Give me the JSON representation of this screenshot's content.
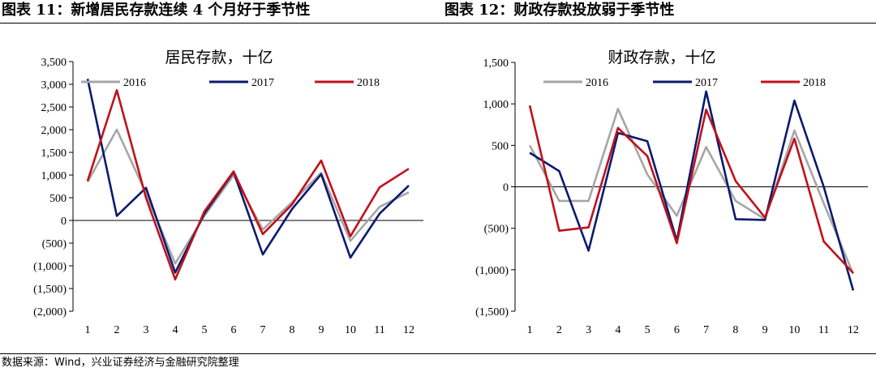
{
  "header": {
    "left_title": "图表 11：新增居民存款连续 4 个月好于季节性",
    "right_title": "图表 12：财政存款投放弱于季节性"
  },
  "source": "数据来源：Wind，兴业证券经济与金融研究院整理",
  "colors": {
    "2016": "#a6a6a6",
    "2017": "#0b1a6e",
    "2018": "#c0111b"
  },
  "chart_data": [
    {
      "type": "line",
      "title": "居民存款，十亿",
      "xlabel": "",
      "ylabel": "",
      "categories": [
        "1",
        "2",
        "3",
        "4",
        "5",
        "6",
        "7",
        "8",
        "9",
        "10",
        "11",
        "12"
      ],
      "ylim": [
        -2000,
        3500
      ],
      "yticks": [
        3500,
        3000,
        2500,
        2000,
        1500,
        1000,
        500,
        0,
        -500,
        -1000,
        -1500,
        -2000
      ],
      "ytick_labels": [
        "3,500",
        "3,000",
        "2,500",
        "2,000",
        "1,500",
        "1,000",
        "500",
        "0",
        "(500)",
        "(1,000)",
        "(1,500)",
        "(2,000)"
      ],
      "legend_position": "top",
      "series": [
        {
          "name": "2016",
          "values": [
            850,
            2000,
            600,
            -950,
            100,
            1000,
            -200,
            400,
            1050,
            -450,
            300,
            620
          ]
        },
        {
          "name": "2017",
          "values": [
            3120,
            100,
            720,
            -1150,
            150,
            1070,
            -750,
            250,
            1020,
            -820,
            150,
            770
          ]
        },
        {
          "name": "2018",
          "values": [
            870,
            2870,
            500,
            -1300,
            200,
            1080,
            -300,
            350,
            1320,
            -350,
            730,
            1140
          ]
        }
      ]
    },
    {
      "type": "line",
      "title": "财政存款，十亿",
      "xlabel": "",
      "ylabel": "",
      "categories": [
        "1",
        "2",
        "3",
        "4",
        "5",
        "6",
        "7",
        "8",
        "9",
        "10",
        "11",
        "12"
      ],
      "ylim": [
        -1500,
        1500
      ],
      "yticks": [
        1500,
        1000,
        500,
        0,
        -500,
        -1000,
        -1500
      ],
      "ytick_labels": [
        "1,500",
        "1,000",
        "500",
        "0",
        "(500)",
        "(1,000)",
        "(1,500)"
      ],
      "legend_position": "top",
      "series": [
        {
          "name": "2016",
          "values": [
            500,
            -170,
            -170,
            940,
            150,
            -350,
            480,
            -170,
            -390,
            680,
            -200,
            -1050
          ]
        },
        {
          "name": "2017",
          "values": [
            410,
            190,
            -770,
            650,
            550,
            -650,
            1150,
            -390,
            -400,
            1040,
            0,
            -1250
          ]
        },
        {
          "name": "2018",
          "values": [
            980,
            -530,
            -490,
            710,
            370,
            -680,
            930,
            70,
            -370,
            580,
            -660,
            -1040
          ]
        }
      ]
    }
  ]
}
